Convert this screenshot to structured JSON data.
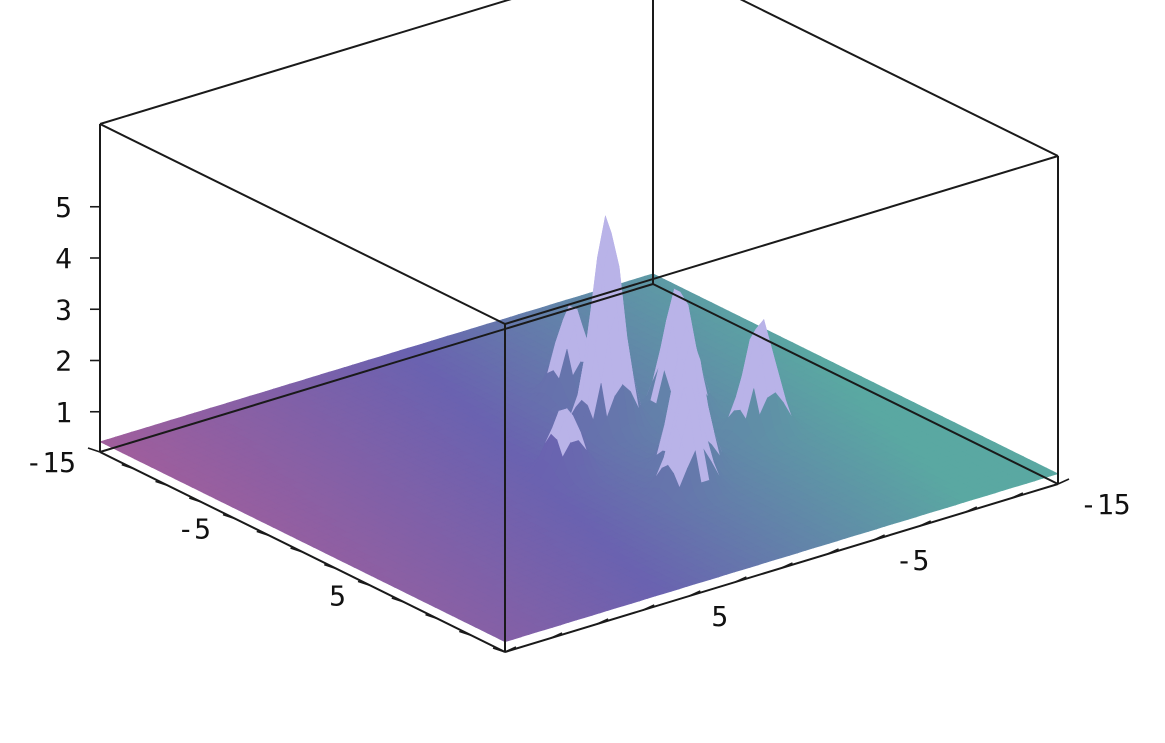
{
  "chart_data": {
    "type": "surface3d",
    "title": "",
    "xlabel": "",
    "ylabel": "",
    "zlabel": "",
    "x_range": [
      -15,
      15
    ],
    "y_range": [
      -15,
      15
    ],
    "z_range": [
      0.8,
      5
    ],
    "x_ticks": [
      {
        "value": -15,
        "label": "-15"
      },
      {
        "value": -5,
        "label": "-5"
      },
      {
        "value": 5,
        "label": "5"
      }
    ],
    "y_ticks": [
      {
        "value": -15,
        "label": "-15"
      },
      {
        "value": -5,
        "label": "-5"
      },
      {
        "value": 5,
        "label": "5"
      }
    ],
    "z_ticks": [
      {
        "value": 1,
        "label": "1"
      },
      {
        "value": 2,
        "label": "2"
      },
      {
        "value": 3,
        "label": "3"
      },
      {
        "value": 4,
        "label": "4"
      },
      {
        "value": 5,
        "label": "5"
      }
    ],
    "base_level": 1,
    "peaks": [
      {
        "x": -2.0,
        "y": -3.0,
        "height": 5.2
      },
      {
        "x": 4.0,
        "y": -3.0,
        "height": 3.8
      },
      {
        "x": -1.5,
        "y": -6.5,
        "height": 3.5
      },
      {
        "x": 6.0,
        "y": -1.5,
        "height": 3.1
      },
      {
        "x": 2.5,
        "y": -8.0,
        "height": 3.2
      },
      {
        "x": -6.0,
        "y": -4.0,
        "height": 2.8
      },
      {
        "x": 1.0,
        "y": 1.5,
        "height": 2.3
      }
    ],
    "colormap": [
      "#a05e9c",
      "#6a62b0",
      "#5aa8a2"
    ],
    "box": true
  }
}
